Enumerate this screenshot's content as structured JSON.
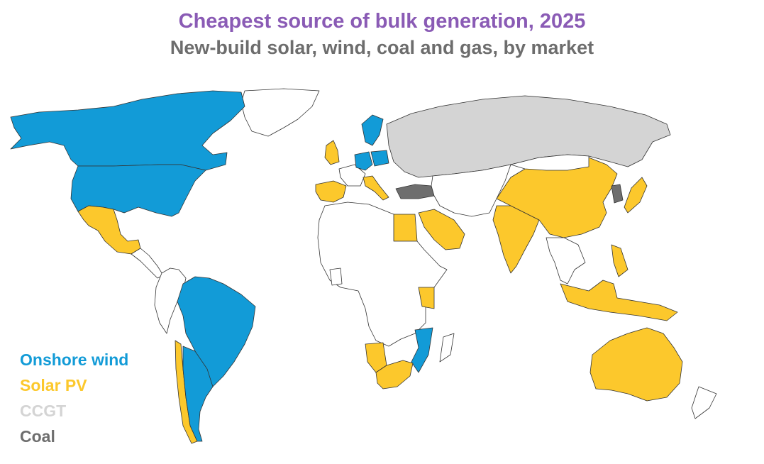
{
  "title": "Cheapest source of bulk generation, 2025",
  "subtitle": "New-build solar, wind, coal and gas, by market",
  "legend": [
    {
      "label": "Onshore wind",
      "color": "#129bd7"
    },
    {
      "label": "Solar PV",
      "color": "#fcc82c"
    },
    {
      "label": "CCGT",
      "color": "#d4d4d4"
    },
    {
      "label": "Coal",
      "color": "#6e6e6e"
    }
  ],
  "other_color": "#ffffff",
  "regions": [
    {
      "name": "Canada",
      "category": "Onshore wind"
    },
    {
      "name": "United States",
      "category": "Onshore wind"
    },
    {
      "name": "Mexico",
      "category": "Solar PV"
    },
    {
      "name": "Brazil",
      "category": "Onshore wind"
    },
    {
      "name": "Chile",
      "category": "Solar PV"
    },
    {
      "name": "Argentina",
      "category": "Onshore wind"
    },
    {
      "name": "Spain",
      "category": "Solar PV"
    },
    {
      "name": "Italy",
      "category": "Solar PV"
    },
    {
      "name": "United Kingdom",
      "category": "Solar PV"
    },
    {
      "name": "Sweden",
      "category": "Onshore wind"
    },
    {
      "name": "Germany",
      "category": "Onshore wind"
    },
    {
      "name": "Poland",
      "category": "Onshore wind"
    },
    {
      "name": "Russia",
      "category": "CCGT"
    },
    {
      "name": "Turkey",
      "category": "Coal"
    },
    {
      "name": "Egypt",
      "category": "Solar PV"
    },
    {
      "name": "Saudi Arabia",
      "category": "Solar PV"
    },
    {
      "name": "India",
      "category": "Solar PV"
    },
    {
      "name": "China",
      "category": "Solar PV"
    },
    {
      "name": "South Korea",
      "category": "Coal"
    },
    {
      "name": "Japan",
      "category": "Solar PV"
    },
    {
      "name": "Kenya",
      "category": "Solar PV"
    },
    {
      "name": "Mozambique",
      "category": "Onshore wind"
    },
    {
      "name": "Namibia",
      "category": "Solar PV"
    },
    {
      "name": "South Africa",
      "category": "Solar PV"
    },
    {
      "name": "Australia",
      "category": "Solar PV"
    },
    {
      "name": "Indonesia",
      "category": "Solar PV"
    },
    {
      "name": "Philippines",
      "category": "Solar PV"
    },
    {
      "name": "Greenland",
      "category": ""
    },
    {
      "name": "Africa (other)",
      "category": ""
    }
  ]
}
